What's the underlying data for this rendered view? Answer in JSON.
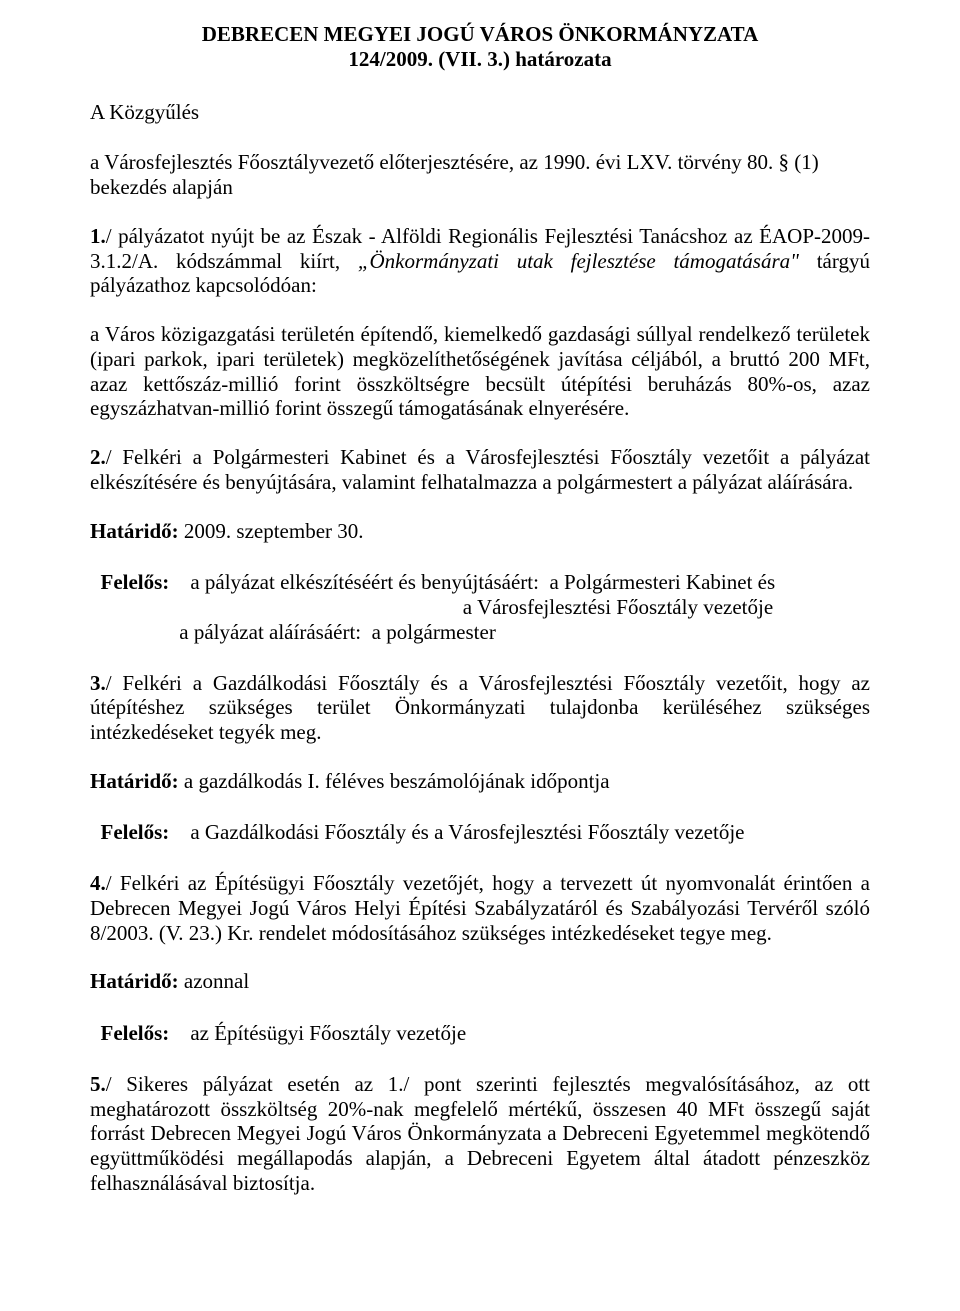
{
  "title_line1": "DEBRECEN MEGYEI JOGÚ VÁROS ÖNKORMÁNYZATA",
  "title_line2": "124/2009. (VII. 3.) határozata",
  "intro_line1": "A Közgyűlés",
  "intro_line2": "a Városfejlesztés Főosztályvezető előterjesztésére, az 1990. évi LXV. törvény 80. § (1) bekezdés alapján",
  "p1_lead_bold": "1.",
  "p1_text_a": "/ pályázatot nyújt be az Észak - Alföldi Regionális Fejlesztési Tanácshoz az ÉAOP-2009-3.1.2/A. kódszámmal kiírt, ",
  "p1_italic": "„Önkormányzati utak fejlesztése támogatására\"",
  "p1_text_b": " tárgyú pályázathoz kapcsolódóan:",
  "p1b": "a Város közigazgatási területén építendő, kiemelkedő gazdasági súllyal rendelkező területek (ipari parkok, ipari területek) megközelíthetőségének javítása céljából, a bruttó 200 MFt, azaz kettőszáz-millió forint összköltségre becsült útépítési beruházás 80%-os, azaz egyszázhatvan-millió forint összegű támogatásának elnyerésére.",
  "p2_lead_bold": "2.",
  "p2_text": "/ Felkéri a Polgármesteri Kabinet és a Városfejlesztési Főosztály vezetőit a pályázat elkészítésére és benyújtására, valamint felhatalmazza a polgármestert a pályázat aláírására.",
  "h1_label": "Határidő:",
  "h1_value": " 2009. szeptember 30.",
  "f_label": "Felelős:",
  "f1_pad": "    ",
  "f1_r1": "a pályázat elkészítéséért és benyújtásáért:  a Polgármesteri Kabinet és",
  "f1_r2_pad": "                                                                       a Városfejlesztési Főosztály vezetője",
  "f1_r3_pad": "                 a pályázat aláírásáért:  a polgármester",
  "p3_lead_bold": "3.",
  "p3_text": "/ Felkéri a Gazdálkodási Főosztály és a Városfejlesztési Főosztály vezetőit, hogy az útépítéshez szükséges terület Önkormányzati tulajdonba kerüléséhez szükséges intézkedéseket tegyék meg.",
  "h2_value": " a gazdálkodás I. féléves beszámolójának időpontja",
  "f2_value": "    a Gazdálkodási Főosztály és a Városfejlesztési Főosztály vezetője",
  "p4_lead_bold": "4.",
  "p4_text": "/ Felkéri az Építésügyi Főosztály vezetőjét, hogy a tervezett út nyomvonalát érintően a Debrecen Megyei Jogú Város Helyi Építési Szabályzatáról és Szabályozási Tervéről szóló 8/2003. (V. 23.) Kr. rendelet módosításához szükséges intézkedéseket tegye meg.",
  "h3_value": " azonnal",
  "f3_value": "    az Építésügyi Főosztály vezetője",
  "p5_lead_bold": "5.",
  "p5_text": "/ Sikeres pályázat esetén az 1./ pont szerinti fejlesztés megvalósításához, az ott meghatározott összköltség 20%-nak megfelelő mértékű, összesen 40 MFt összegű saját forrást Debrecen Megyei Jogú Város Önkormányzata a Debreceni Egyetemmel megkötendő együttműködési megállapodás alapján, a Debreceni Egyetem által átadott pénzeszköz felhasználásával biztosítja."
}
